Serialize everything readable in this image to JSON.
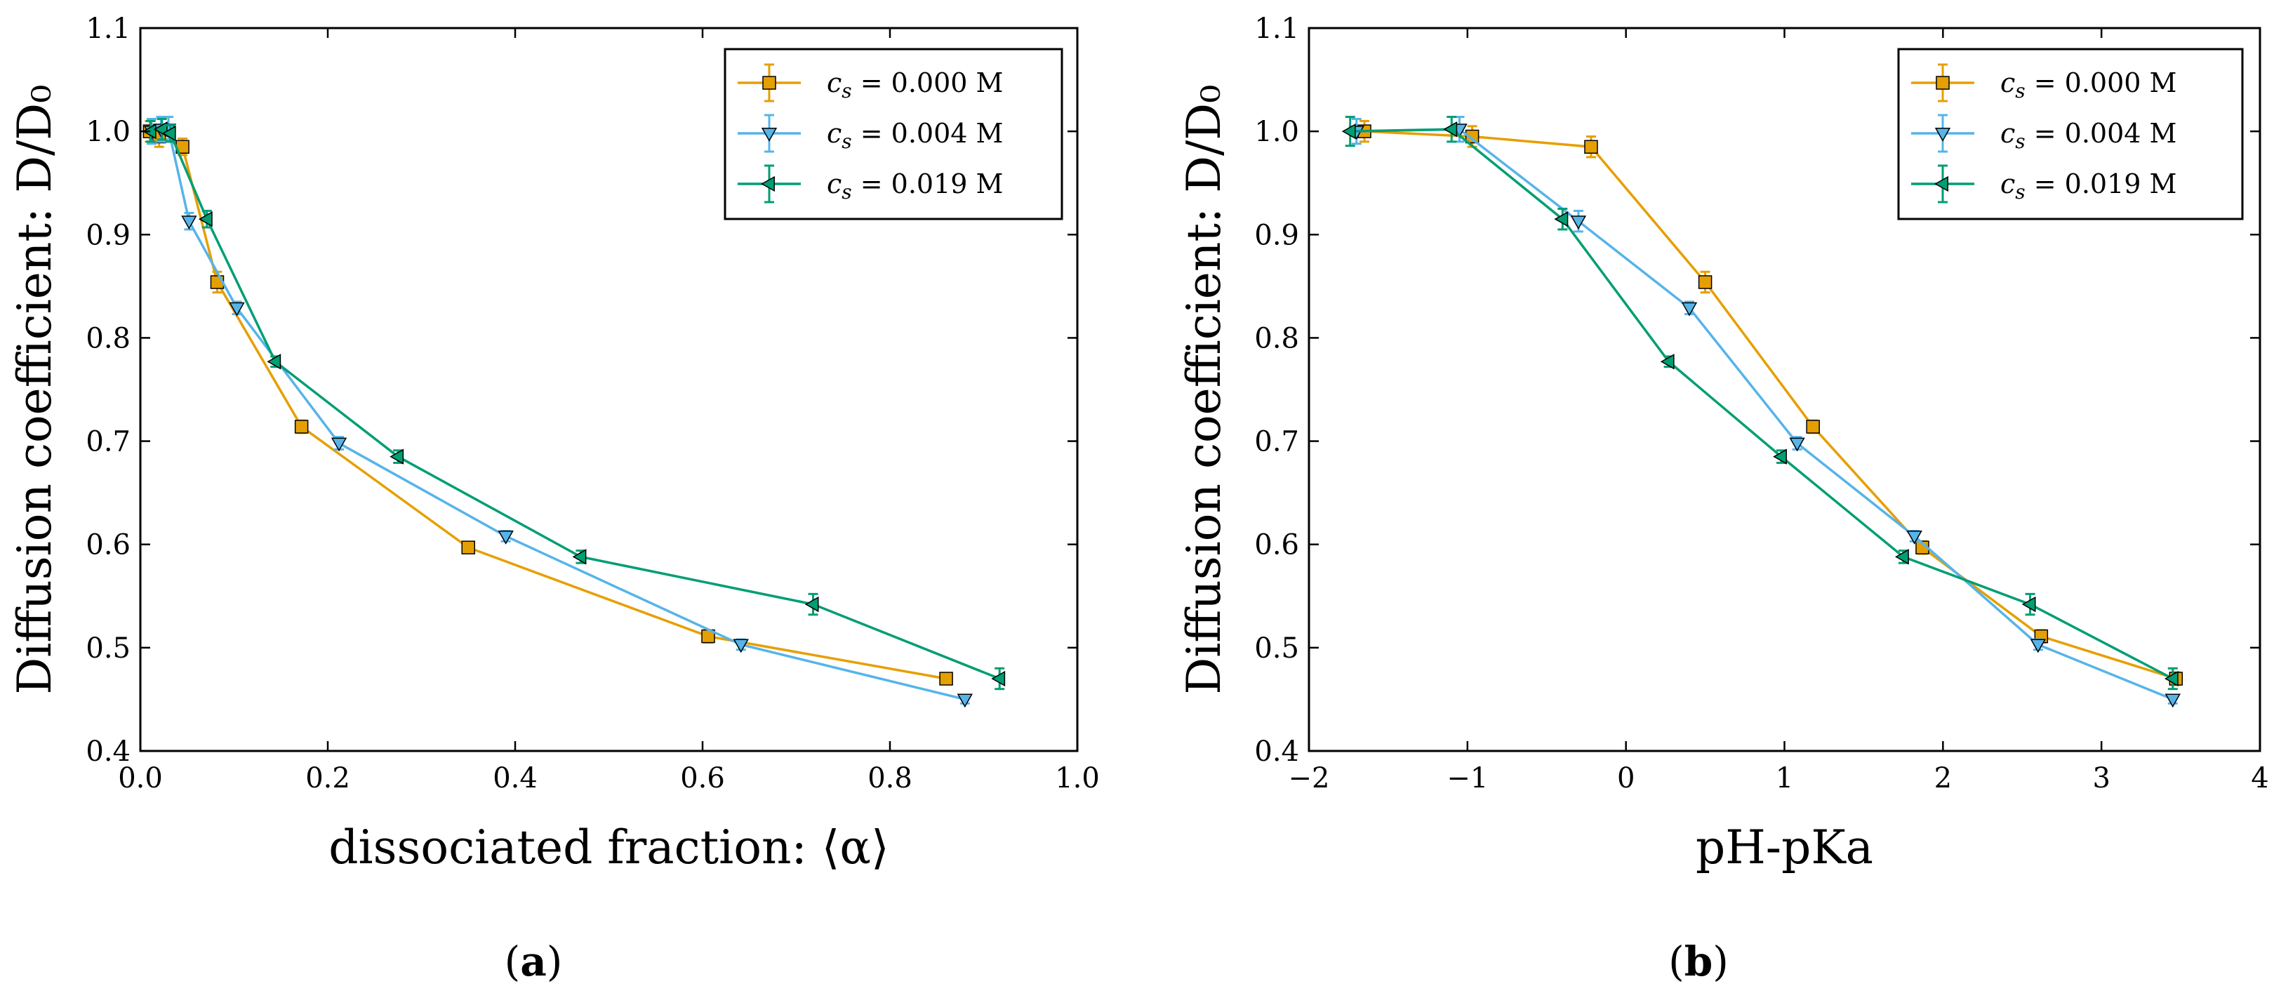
{
  "colors": {
    "orange": "#E69F00",
    "blue": "#56B4E9",
    "green": "#009E73",
    "frame": "#000000"
  },
  "chart_data": [
    {
      "type": "line",
      "panel": "a",
      "caption": "(a)",
      "caption_open": "(",
      "caption_letter": "a",
      "caption_close": ")",
      "xlabel": "dissociated fraction: ⟨α⟩",
      "ylabel": "Diffusion coefficient: D/D₀",
      "xlim": [
        0.0,
        1.0
      ],
      "ylim": [
        0.4,
        1.1
      ],
      "xticks": [
        0.0,
        0.2,
        0.4,
        0.6,
        0.8,
        1.0
      ],
      "xtick_labels": [
        "0.0",
        "0.2",
        "0.4",
        "0.6",
        "0.8",
        "1.0"
      ],
      "yticks": [
        0.4,
        0.5,
        0.6,
        0.7,
        0.8,
        0.9,
        1.0,
        1.1
      ],
      "ytick_labels": [
        "0.4",
        "0.5",
        "0.6",
        "0.7",
        "0.8",
        "0.9",
        "1.0",
        "1.1"
      ],
      "legend_position": "top-right",
      "series": [
        {
          "name": "c_s = 0.000 M",
          "label_prefix": "c",
          "label_sub": "s",
          "label_value": " = 0.000 M",
          "color": "#E69F00",
          "marker": "square",
          "x": [
            0.01,
            0.02,
            0.045,
            0.082,
            0.172,
            0.35,
            0.606,
            0.86
          ],
          "y": [
            1.0,
            0.995,
            0.985,
            0.854,
            0.714,
            0.597,
            0.511,
            0.47
          ],
          "err": [
            0.01,
            0.01,
            0.008,
            0.01,
            0.006,
            0.005,
            0.006,
            0.005
          ]
        },
        {
          "name": "c_s = 0.004 M",
          "label_prefix": "c",
          "label_sub": "s",
          "label_value": " = 0.004 M",
          "color": "#56B4E9",
          "marker": "triangle-down",
          "x": [
            0.012,
            0.022,
            0.03,
            0.052,
            0.103,
            0.212,
            0.39,
            0.641,
            0.88
          ],
          "y": [
            1.0,
            1.002,
            1.002,
            0.913,
            0.829,
            0.698,
            0.608,
            0.503,
            0.45
          ],
          "err": [
            0.012,
            0.012,
            0.012,
            0.008,
            0.006,
            0.006,
            0.005,
            0.005,
            0.004
          ]
        },
        {
          "name": "c_s = 0.019 M",
          "label_prefix": "c",
          "label_sub": "s",
          "label_value": " = 0.019 M",
          "color": "#009E73",
          "marker": "triangle-left",
          "x": [
            0.011,
            0.023,
            0.032,
            0.071,
            0.144,
            0.275,
            0.47,
            0.718,
            0.917
          ],
          "y": [
            1.0,
            1.002,
            0.998,
            0.915,
            0.777,
            0.685,
            0.588,
            0.542,
            0.47
          ],
          "err": [
            0.01,
            0.01,
            0.008,
            0.008,
            0.005,
            0.006,
            0.006,
            0.01,
            0.01
          ]
        }
      ]
    },
    {
      "type": "line",
      "panel": "b",
      "caption": "(b)",
      "caption_open": "(",
      "caption_letter": "b",
      "caption_close": ")",
      "xlabel": "pH-pKa",
      "ylabel": "Diffusion coefficient: D/D₀",
      "xlim": [
        -2,
        4
      ],
      "ylim": [
        0.4,
        1.1
      ],
      "xticks": [
        -2,
        -1,
        0,
        1,
        2,
        3,
        4
      ],
      "xtick_labels": [
        "−2",
        "−1",
        "0",
        "1",
        "2",
        "3",
        "4"
      ],
      "yticks": [
        0.4,
        0.5,
        0.6,
        0.7,
        0.8,
        0.9,
        1.0,
        1.1
      ],
      "ytick_labels": [
        "0.4",
        "0.5",
        "0.6",
        "0.7",
        "0.8",
        "0.9",
        "1.0",
        "1.1"
      ],
      "legend_position": "top-right",
      "series": [
        {
          "name": "c_s = 0.000 M",
          "label_prefix": "c",
          "label_sub": "s",
          "label_value": " = 0.000 M",
          "color": "#E69F00",
          "marker": "square",
          "x": [
            -1.65,
            -0.97,
            -0.22,
            0.5,
            1.18,
            1.87,
            2.62,
            3.47
          ],
          "y": [
            1.0,
            0.995,
            0.985,
            0.854,
            0.714,
            0.597,
            0.511,
            0.47
          ],
          "err": [
            0.01,
            0.01,
            0.01,
            0.01,
            0.006,
            0.006,
            0.006,
            0.006
          ]
        },
        {
          "name": "c_s = 0.004 M",
          "label_prefix": "c",
          "label_sub": "s",
          "label_value": " = 0.004 M",
          "color": "#56B4E9",
          "marker": "triangle-down",
          "x": [
            -1.7,
            -1.05,
            -0.3,
            0.4,
            1.08,
            1.82,
            2.6,
            3.45
          ],
          "y": [
            1.0,
            1.002,
            0.913,
            0.829,
            0.698,
            0.608,
            0.503,
            0.45
          ],
          "err": [
            0.012,
            0.012,
            0.01,
            0.006,
            0.006,
            0.005,
            0.005,
            0.004
          ]
        },
        {
          "name": "c_s = 0.019 M",
          "label_prefix": "c",
          "label_sub": "s",
          "label_value": " = 0.019 M",
          "color": "#009E73",
          "marker": "triangle-left",
          "x": [
            -1.74,
            -1.1,
            -0.4,
            0.27,
            0.98,
            1.75,
            2.55,
            3.45
          ],
          "y": [
            1.0,
            1.002,
            0.915,
            0.777,
            0.685,
            0.588,
            0.542,
            0.47
          ],
          "err": [
            0.014,
            0.012,
            0.01,
            0.005,
            0.006,
            0.006,
            0.01,
            0.01
          ]
        }
      ]
    }
  ]
}
